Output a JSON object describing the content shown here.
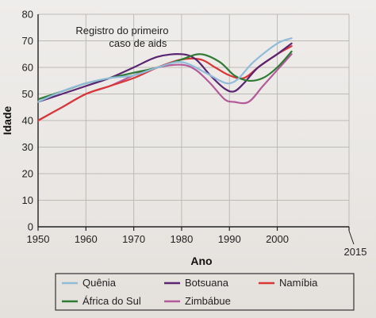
{
  "chart_data": {
    "type": "line",
    "xlabel": "Ano",
    "ylabel": "Idade",
    "xlim": [
      1950,
      2015
    ],
    "ylim": [
      0,
      80
    ],
    "x_ticks": [
      1950,
      1960,
      1970,
      1980,
      1990,
      2000,
      2015
    ],
    "y_ticks": [
      0,
      10,
      20,
      30,
      40,
      50,
      60,
      70,
      80
    ],
    "grid": true,
    "legend_position": "bottom",
    "annotation": {
      "lines": [
        "Registro do primeiro",
        "caso de aids"
      ],
      "x": 1980
    },
    "series": [
      {
        "name": "Quênia",
        "color": "#8fbcd8",
        "x": [
          1950,
          1955,
          1960,
          1965,
          1970,
          1975,
          1980,
          1985,
          1988,
          1990,
          1992,
          1995,
          2000,
          2003
        ],
        "values": [
          47,
          51,
          54,
          56,
          57,
          60,
          62,
          58,
          55,
          54,
          56,
          62,
          69,
          71
        ]
      },
      {
        "name": "Botsuana",
        "color": "#5a2472",
        "x": [
          1950,
          1955,
          1960,
          1965,
          1970,
          1975,
          1980,
          1983,
          1986,
          1989,
          1991,
          1993,
          1996,
          2000,
          2003
        ],
        "values": [
          47,
          50,
          53,
          56,
          60,
          64,
          65,
          63,
          57,
          52,
          51,
          54,
          60,
          65,
          69
        ]
      },
      {
        "name": "Namíbia",
        "color": "#d93636",
        "x": [
          1950,
          1955,
          1960,
          1965,
          1970,
          1975,
          1980,
          1984,
          1987,
          1990,
          1993,
          1996,
          2000,
          2003
        ],
        "values": [
          40,
          45,
          50,
          53,
          56,
          60,
          63,
          63,
          60,
          57,
          56,
          60,
          65,
          68
        ]
      },
      {
        "name": "África do Sul",
        "color": "#2f7a35",
        "x": [
          1950,
          1955,
          1960,
          1965,
          1970,
          1975,
          1980,
          1984,
          1988,
          1991,
          1994,
          1997,
          2000,
          2003
        ],
        "values": [
          48,
          51,
          54,
          56,
          58,
          60,
          63,
          65,
          62,
          57,
          55,
          56,
          60,
          66
        ]
      },
      {
        "name": "Zimbábue",
        "color": "#b45a9a",
        "x": [
          1950,
          1955,
          1960,
          1965,
          1970,
          1975,
          1980,
          1983,
          1986,
          1989,
          1991,
          1994,
          1997,
          2000,
          2003
        ],
        "values": [
          40,
          45,
          50,
          53,
          57,
          60,
          61,
          59,
          54,
          48,
          47,
          47,
          53,
          59,
          65
        ]
      }
    ],
    "legend_order": [
      "Quênia",
      "Botsuana",
      "Namíbia",
      "África do Sul",
      "Zimbábue"
    ]
  }
}
